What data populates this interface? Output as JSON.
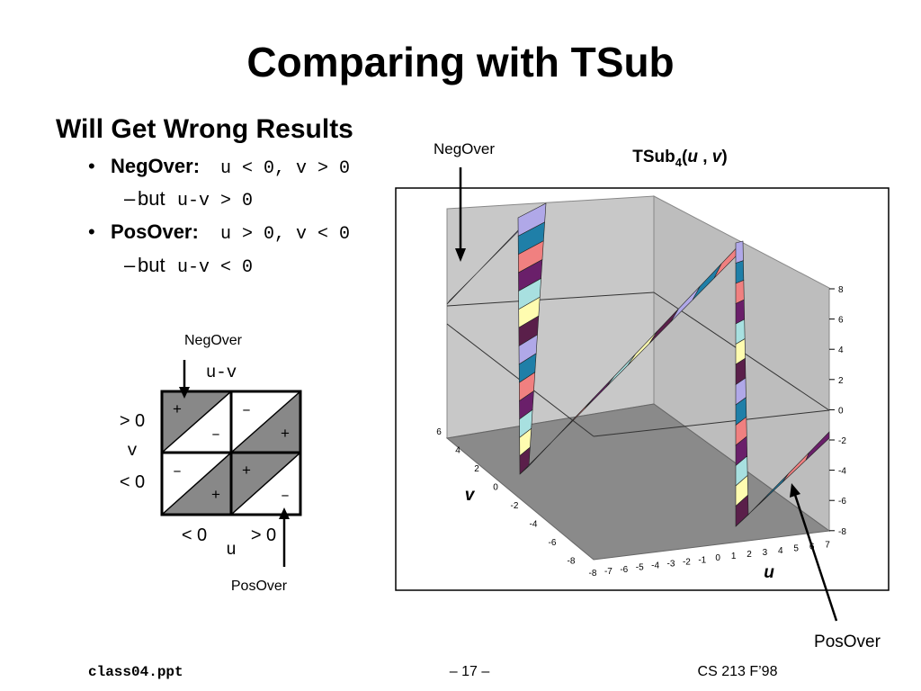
{
  "title": "Comparing with TSub",
  "heading": "Will Get Wrong Results",
  "bullets": [
    {
      "label": "NegOver:",
      "code": "u < 0, v > 0",
      "sub": {
        "text": "but",
        "code": "u-v > 0"
      }
    },
    {
      "label": "PosOver:",
      "code": "u > 0, v < 0",
      "sub": {
        "text": "but",
        "code": "u-v < 0"
      }
    }
  ],
  "diagram": {
    "neg_over": "NegOver",
    "top_label": "u-v",
    "row_labels": [
      "> 0",
      "< 0"
    ],
    "v_label": "v",
    "col_labels": [
      "< 0",
      "> 0"
    ],
    "u_label": "u",
    "pos_over": "PosOver",
    "cells": [
      [
        "+",
        "–",
        "–",
        "+"
      ],
      [
        "–",
        "+",
        "+",
        "–"
      ]
    ]
  },
  "plot": {
    "title": [
      "TSub",
      "4",
      "(",
      "u",
      " , ",
      "v",
      ")"
    ],
    "neg_over": "NegOver",
    "pos_over": "PosOver",
    "u_label": "u",
    "v_label": "v",
    "z_ticks": [
      "8",
      "6",
      "4",
      "2",
      "0",
      "-2",
      "-4",
      "-6",
      "-8"
    ],
    "u_ticks": [
      "-8",
      "-7",
      "-6",
      "-5",
      "-4",
      "-3",
      "-2",
      "-1",
      "0",
      "1",
      "2",
      "3",
      "4",
      "5",
      "6",
      "7"
    ],
    "v_ticks": [
      "6",
      "4",
      "2",
      "0",
      "-2",
      "-4",
      "-6",
      "-8"
    ]
  },
  "footer": {
    "left": "class04.ppt",
    "center": "– 17 –",
    "right": "CS 213 F’98"
  }
}
